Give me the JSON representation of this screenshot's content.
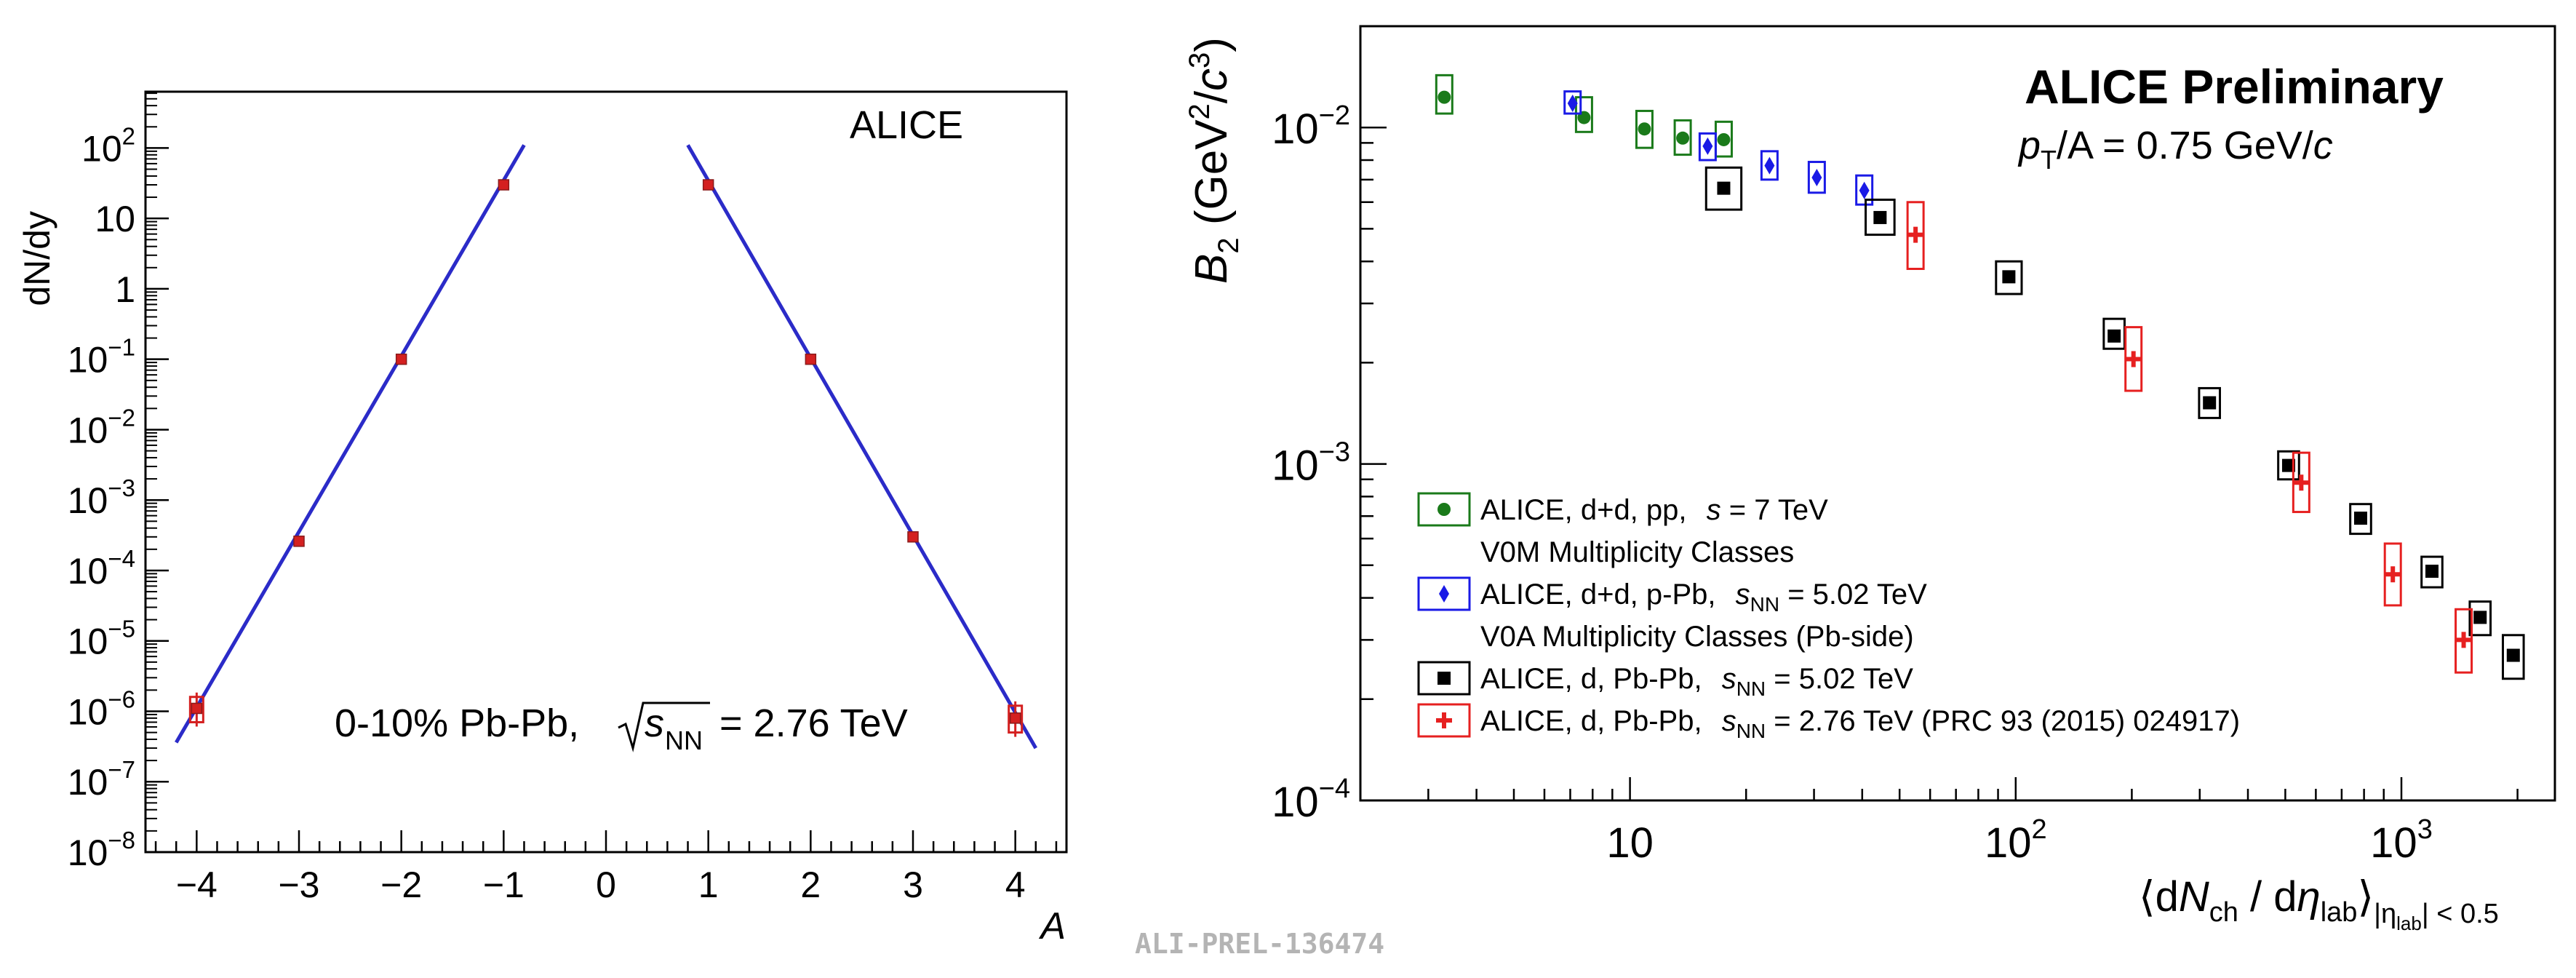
{
  "colors": {
    "fit_line": "#2b2bc8",
    "point": "#d42020",
    "green": "#1a7a1a",
    "blue": "#1a1ae6",
    "black": "#000000",
    "red": "#e62020",
    "watermark": "#b4b4b4"
  },
  "watermark": "ALI-PREL-136474",
  "chart_data": [
    {
      "type": "scatter",
      "name": "yield-vs-mass-number",
      "title": "ALICE",
      "ylabel": "dN/dy",
      "xlabel": "A",
      "annotation": {
        "prefix": "0-10% Pb-Pb, ",
        "sqrt": "s",
        "sub": "NN",
        "suffix": " = 2.76 TeV"
      },
      "xlim": [
        -4.5,
        4.5
      ],
      "ylim_log10": [
        -8,
        2.8
      ],
      "yscale": "log",
      "xticks": [
        -4,
        -3,
        -2,
        -1,
        0,
        1,
        2,
        3,
        4
      ],
      "xtick_labels": [
        "−4",
        "−3",
        "−2",
        "−1",
        "0",
        "1",
        "2",
        "3",
        "4"
      ],
      "yticks": [
        {
          "exp": -8,
          "base": "10",
          "sup": "−8"
        },
        {
          "exp": -7,
          "base": "10",
          "sup": "−7"
        },
        {
          "exp": -6,
          "base": "10",
          "sup": "−6"
        },
        {
          "exp": -5,
          "base": "10",
          "sup": "−5"
        },
        {
          "exp": -4,
          "base": "10",
          "sup": "−4"
        },
        {
          "exp": -3,
          "base": "10",
          "sup": "−3"
        },
        {
          "exp": -2,
          "base": "10",
          "sup": "−2"
        },
        {
          "exp": -1,
          "base": "10",
          "sup": "−1"
        },
        {
          "exp": 0,
          "base": "1",
          "sup": ""
        },
        {
          "exp": 1,
          "base": "10",
          "sup": ""
        },
        {
          "exp": 2,
          "base": "10",
          "sup": "2"
        }
      ],
      "points": [
        {
          "x": -4,
          "y": 1.1e-06,
          "elo": 4e-07,
          "ehi": 5e-07
        },
        {
          "x": -3,
          "y": 0.00026
        },
        {
          "x": -2,
          "y": 0.1
        },
        {
          "x": -1,
          "y": 30
        },
        {
          "x": 1,
          "y": 30
        },
        {
          "x": 2,
          "y": 0.1
        },
        {
          "x": 3,
          "y": 0.0003
        },
        {
          "x": 4,
          "y": 8e-07,
          "elo": 3e-07,
          "ehi": 4e-07
        }
      ],
      "fits": [
        {
          "x": [
            -4.2,
            -0.8
          ],
          "y": [
            3.6e-07,
            110
          ]
        },
        {
          "x": [
            0.8,
            4.2
          ],
          "y": [
            110,
            3e-07
          ]
        }
      ]
    },
    {
      "type": "scatter",
      "name": "coalescence-b2-vs-multiplicity",
      "title": "ALICE Preliminary",
      "subtitle": {
        "p": "p",
        "sub": "T",
        "rest": "/A = 0.75 GeV/",
        "c": "c"
      },
      "ylabel": {
        "b": "B",
        "sub": "2",
        "unit": " (GeV",
        "sup1": "2",
        "slash": "/",
        "c": "c",
        "sup2": "3",
        "close": ")"
      },
      "xlabel": {
        "open": "⟨d",
        "n": "N",
        "sub1": "ch",
        "mid": " / d",
        "eta": "η",
        "sub2": "lab",
        "close": "⟩",
        "tail": "|η",
        "tailsub": "lab",
        "tailend": "| < 0.5"
      },
      "xscale": "log",
      "yscale": "log",
      "xlim": [
        2,
        2500
      ],
      "ylim": [
        0.0001,
        0.02
      ],
      "xticks": [
        {
          "v": 10,
          "base": "10",
          "sup": ""
        },
        {
          "v": 100,
          "base": "10",
          "sup": "2"
        },
        {
          "v": 1000,
          "base": "10",
          "sup": "3"
        }
      ],
      "yticks": [
        {
          "v": 0.0001,
          "base": "10",
          "sup": "−4"
        },
        {
          "v": 0.001,
          "base": "10",
          "sup": "−3"
        },
        {
          "v": 0.01,
          "base": "10",
          "sup": "−2"
        }
      ],
      "series": [
        {
          "name": "pp-7TeV",
          "color_key": "green",
          "marker": "circle",
          "legend": {
            "main": "ALICE, d+d, pp, ",
            "sqrt": "s",
            "sub": "",
            "after": " = 7 TeV",
            "line2": "V0M Multiplicity Classes"
          },
          "points": [
            {
              "x": 3.3,
              "y": 0.0123,
              "slo": 0.011,
              "shi": 0.0143
            },
            {
              "x": 7.6,
              "y": 0.0107,
              "slo": 0.0097,
              "shi": 0.0123
            },
            {
              "x": 10.9,
              "y": 0.0099,
              "slo": 0.0087,
              "shi": 0.0112
            },
            {
              "x": 13.7,
              "y": 0.0093,
              "slo": 0.0083,
              "shi": 0.0105
            },
            {
              "x": 17.5,
              "y": 0.0092,
              "slo": 0.0082,
              "shi": 0.0104
            }
          ]
        },
        {
          "name": "pPb-5.02TeV",
          "color_key": "blue",
          "marker": "diamond",
          "legend": {
            "main": "ALICE, d+d, p-Pb, ",
            "sqrt": "s",
            "sub": "NN",
            "after": " = 5.02 TeV",
            "line2": "V0A Multiplicity Classes (Pb-side)"
          },
          "points": [
            {
              "x": 7.1,
              "y": 0.0118,
              "slo": 0.011,
              "shi": 0.0128
            },
            {
              "x": 15.9,
              "y": 0.0088,
              "slo": 0.008,
              "shi": 0.0096
            },
            {
              "x": 23.0,
              "y": 0.0077,
              "slo": 0.007,
              "shi": 0.0085
            },
            {
              "x": 30.5,
              "y": 0.0071,
              "slo": 0.0064,
              "shi": 0.0079
            },
            {
              "x": 40.5,
              "y": 0.0065,
              "slo": 0.0059,
              "shi": 0.0072
            }
          ]
        },
        {
          "name": "PbPb-5.02TeV",
          "color_key": "black",
          "marker": "square",
          "legend": {
            "main": "ALICE, d, Pb-Pb, ",
            "sqrt": "s",
            "sub": "NN",
            "after": " = 5.02 TeV",
            "line2": ""
          },
          "points": [
            {
              "x": 17.5,
              "y": 0.0066,
              "slo": 0.0057,
              "shi": 0.0076,
              "bw": 2.2
            },
            {
              "x": 44.5,
              "y": 0.0054,
              "slo": 0.0048,
              "shi": 0.0061,
              "bw": 1.8
            },
            {
              "x": 96,
              "y": 0.0036,
              "slo": 0.0032,
              "shi": 0.004,
              "bw": 1.6
            },
            {
              "x": 180,
              "y": 0.0024,
              "slo": 0.0022,
              "shi": 0.0027,
              "bw": 1.3
            },
            {
              "x": 318,
              "y": 0.00152,
              "slo": 0.00137,
              "shi": 0.00168,
              "bw": 1.3
            },
            {
              "x": 510,
              "y": 0.00099,
              "slo": 0.0009,
              "shi": 0.00109,
              "bw": 1.3
            },
            {
              "x": 784,
              "y": 0.00069,
              "slo": 0.00062,
              "shi": 0.00076,
              "bw": 1.3
            },
            {
              "x": 1200,
              "y": 0.00048,
              "slo": 0.00043,
              "shi": 0.00053,
              "bw": 1.3
            },
            {
              "x": 1600,
              "y": 0.00035,
              "slo": 0.00031,
              "shi": 0.00039,
              "bw": 1.3
            },
            {
              "x": 1950,
              "y": 0.00027,
              "slo": 0.00023,
              "shi": 0.00031,
              "bw": 1.3
            }
          ]
        },
        {
          "name": "PbPb-2.76TeV",
          "color_key": "red",
          "marker": "cross",
          "legend": {
            "main": "ALICE, d, Pb-Pb, ",
            "sqrt": "s",
            "sub": "NN",
            "after": " = 2.76 TeV (PRC 93 (2015) 024917)",
            "line2": ""
          },
          "points": [
            {
              "x": 55,
              "y": 0.0048,
              "slo": 0.0038,
              "shi": 0.006
            },
            {
              "x": 202,
              "y": 0.00205,
              "slo": 0.00165,
              "shi": 0.00255
            },
            {
              "x": 550,
              "y": 0.00088,
              "slo": 0.00072,
              "shi": 0.00108
            },
            {
              "x": 950,
              "y": 0.00047,
              "slo": 0.00038,
              "shi": 0.00058
            },
            {
              "x": 1450,
              "y": 0.0003,
              "slo": 0.00024,
              "shi": 0.00037
            }
          ]
        }
      ]
    }
  ]
}
